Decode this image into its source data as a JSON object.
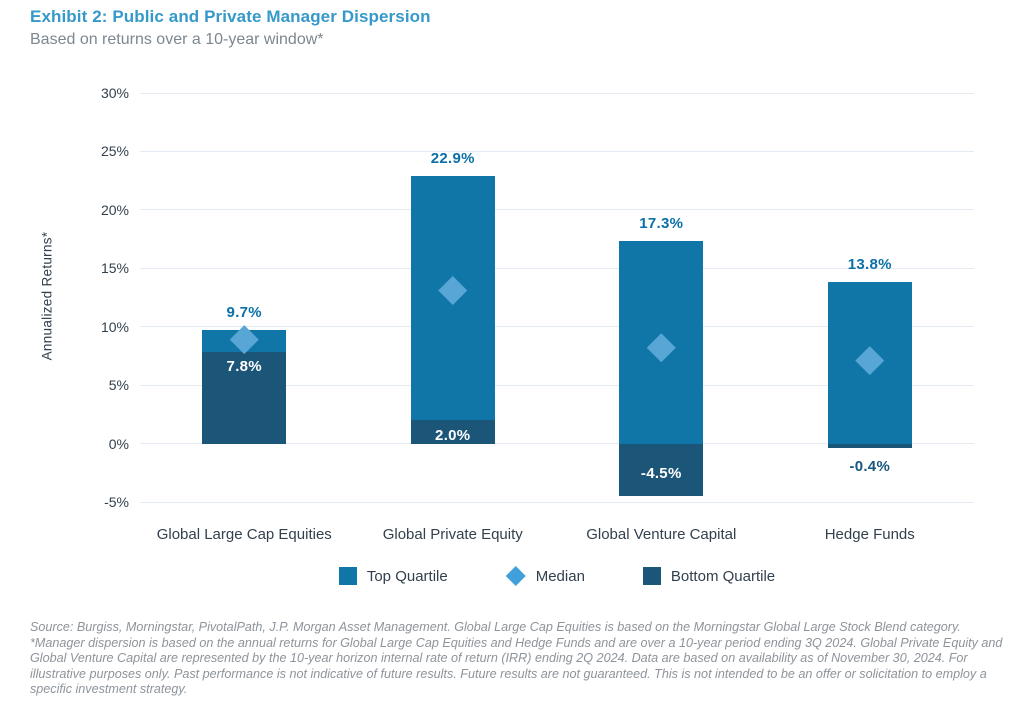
{
  "header": {
    "title": "Exhibit 2: Public and Private Manager Dispersion",
    "subtitle": "Based on returns over a 10-year window*"
  },
  "chart_data": {
    "type": "bar",
    "title": "Exhibit 2: Public and Private Manager Dispersion",
    "subtitle": "Based on returns over a 10-year window*",
    "xlabel": "",
    "ylabel": "Annualized Returns*",
    "ylim": [
      -5,
      30
    ],
    "yticks": [
      30,
      25,
      20,
      15,
      10,
      5,
      0,
      -5
    ],
    "ytick_suffix": "%",
    "grid": true,
    "legend_position": "bottom",
    "categories": [
      "Global Large Cap Equities",
      "Global Private Equity",
      "Global Venture Capital",
      "Hedge Funds"
    ],
    "series": [
      {
        "name": "Top Quartile",
        "values": [
          9.7,
          22.9,
          17.3,
          13.8
        ],
        "color": "#1076A8"
      },
      {
        "name": "Median",
        "values": [
          8.9,
          13.1,
          8.2,
          7.1
        ],
        "color": "#58A6D6",
        "marker": "diamond"
      },
      {
        "name": "Bottom Quartile",
        "values": [
          7.8,
          2.0,
          -4.5,
          -0.4
        ],
        "color": "#1B5578"
      }
    ],
    "labels": {
      "top": [
        "9.7%",
        "22.9%",
        "17.3%",
        "13.8%"
      ],
      "bottom": [
        "7.8%",
        "2.0%",
        "-4.5%",
        "-0.4%"
      ],
      "bottom_placement": [
        "inside-top",
        "inside",
        "inside",
        "below"
      ]
    }
  },
  "legend": {
    "items": [
      {
        "label": "Top Quartile",
        "shape": "square",
        "color": "#1076A8"
      },
      {
        "label": "Median",
        "shape": "diamond",
        "color": "#3FA0DC"
      },
      {
        "label": "Bottom Quartile",
        "shape": "square",
        "color": "#1B5578"
      }
    ]
  },
  "colors": {
    "title": "#3599C9",
    "subtitle": "#7C8790",
    "axis_text": "#33404D",
    "gridline": "#E3EAF1",
    "value_label": "#0C70A8",
    "below_label": "#17577F",
    "footnote": "#8D949B"
  },
  "footnote": "Source: Burgiss, Morningstar, PivotalPath, J.P. Morgan Asset Management. Global Large Cap Equities is based on the Morningstar Global Large Stock Blend category. *Manager dispersion is based on the annual returns for Global Large Cap Equities and Hedge Funds and are over a 10-year period ending 3Q 2024. Global Private Equity and Global Venture Capital are represented by the 10-year horizon internal rate of return (IRR) ending 2Q 2024. Data are based on availability as of November 30, 2024. For illustrative purposes only. Past performance is not indicative of future results. Future results are not guaranteed. This is not intended to be an offer or solicitation to employ a specific investment strategy."
}
